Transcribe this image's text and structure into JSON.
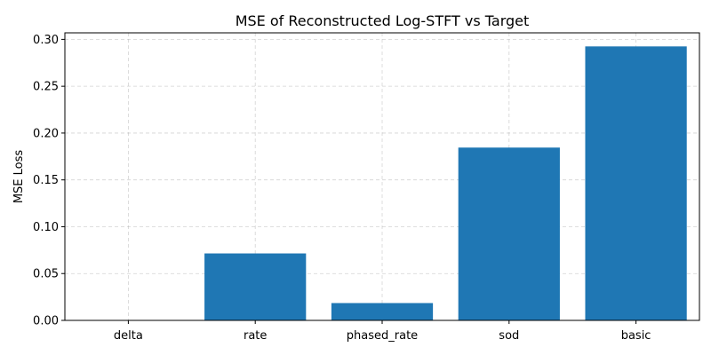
{
  "chart_data": {
    "type": "bar",
    "title": "MSE of Reconstructed Log-STFT vs Target",
    "xlabel": "",
    "ylabel": "MSE Loss",
    "categories": [
      "delta",
      "rate",
      "phased_rate",
      "sod",
      "basic"
    ],
    "values": [
      0.0,
      0.0715,
      0.0185,
      0.1845,
      0.2925
    ],
    "ylim": [
      0,
      0.307
    ],
    "yticks": [
      "0.00",
      "0.05",
      "0.10",
      "0.15",
      "0.20",
      "0.25",
      "0.30"
    ],
    "grid": true,
    "bar_color": "#1f77b4"
  }
}
